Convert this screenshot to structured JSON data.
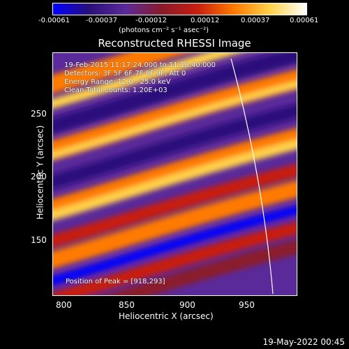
{
  "colorbar": {
    "ticks": [
      "-0.00061",
      "-0.00037",
      "-0.00012",
      "0.00012",
      "0.00037",
      "0.00061"
    ],
    "units": "(photons cm⁻² s⁻¹ asec⁻²)",
    "colors": [
      "#0000ff",
      "#2a0f7a",
      "#5a2a9a",
      "#8a1a2a",
      "#c81e10",
      "#ff7a00",
      "#ffd24a",
      "#ffffff"
    ]
  },
  "plot": {
    "title": "Reconstructed RHESSI Image",
    "info": {
      "time": "19-Feb-2015 11:17:24.000 to 11:18:40.000",
      "detectors": "Detectors: 3F 5F 6F 7F 8F 9F, Att 0",
      "energy": "Energy Range: 12.0 - 25.0 keV",
      "clean": "Clean    Total counts: 1.20E+03",
      "peak": "Position of Peak = [918,293]"
    },
    "x_ticks": [
      "800",
      "850",
      "900",
      "950"
    ],
    "y_ticks": [
      "250",
      "200",
      "150"
    ],
    "x_label": "Heliocentric X (arcsec)",
    "y_label": "Heliocentric Y (arcsec)"
  },
  "footer": {
    "date": "19-May-2022 00:45"
  }
}
